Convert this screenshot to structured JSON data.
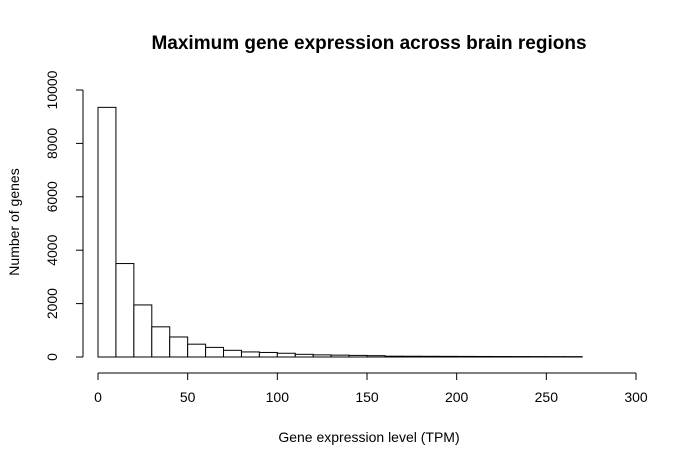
{
  "chart_data": {
    "type": "bar",
    "title": "Maximum gene expression across brain regions",
    "xlabel": "Gene expression level (TPM)",
    "ylabel": "Number of genes",
    "xlim": [
      0,
      300
    ],
    "ylim": [
      0,
      10000
    ],
    "x_ticks": [
      "0",
      "50",
      "100",
      "150",
      "200",
      "250",
      "300"
    ],
    "x_tick_values": [
      0,
      50,
      100,
      150,
      200,
      250,
      300
    ],
    "y_ticks": [
      "0",
      "2000",
      "4000",
      "6000",
      "8000",
      "10000"
    ],
    "y_tick_values": [
      0,
      2000,
      4000,
      6000,
      8000,
      10000
    ],
    "bin_width": 10,
    "bins": [
      {
        "x0": 0,
        "x1": 10,
        "value": 9350
      },
      {
        "x0": 10,
        "x1": 20,
        "value": 3500
      },
      {
        "x0": 20,
        "x1": 30,
        "value": 1950
      },
      {
        "x0": 30,
        "x1": 40,
        "value": 1130
      },
      {
        "x0": 40,
        "x1": 50,
        "value": 750
      },
      {
        "x0": 50,
        "x1": 60,
        "value": 480
      },
      {
        "x0": 60,
        "x1": 70,
        "value": 360
      },
      {
        "x0": 70,
        "x1": 80,
        "value": 250
      },
      {
        "x0": 80,
        "x1": 90,
        "value": 190
      },
      {
        "x0": 90,
        "x1": 100,
        "value": 170
      },
      {
        "x0": 100,
        "x1": 110,
        "value": 140
      },
      {
        "x0": 110,
        "x1": 120,
        "value": 100
      },
      {
        "x0": 120,
        "x1": 130,
        "value": 80
      },
      {
        "x0": 130,
        "x1": 140,
        "value": 70
      },
      {
        "x0": 140,
        "x1": 150,
        "value": 60
      },
      {
        "x0": 150,
        "x1": 160,
        "value": 50
      },
      {
        "x0": 160,
        "x1": 170,
        "value": 30
      },
      {
        "x0": 170,
        "x1": 180,
        "value": 28
      },
      {
        "x0": 180,
        "x1": 190,
        "value": 26
      },
      {
        "x0": 190,
        "x1": 200,
        "value": 24
      },
      {
        "x0": 200,
        "x1": 210,
        "value": 22
      },
      {
        "x0": 210,
        "x1": 220,
        "value": 20
      },
      {
        "x0": 220,
        "x1": 230,
        "value": 18
      },
      {
        "x0": 230,
        "x1": 240,
        "value": 16
      },
      {
        "x0": 240,
        "x1": 250,
        "value": 15
      },
      {
        "x0": 250,
        "x1": 260,
        "value": 14
      },
      {
        "x0": 260,
        "x1": 270,
        "value": 13
      },
      {
        "x0": 270,
        "x1": 280,
        "value": 0
      },
      {
        "x0": 280,
        "x1": 290,
        "value": 0
      },
      {
        "x0": 290,
        "x1": 300,
        "value": 0
      },
      {
        "x0": 300,
        "x1": 310,
        "value": 0
      }
    ],
    "grid": false,
    "bar_fill": "#ffffff",
    "bar_stroke": "#000000"
  }
}
